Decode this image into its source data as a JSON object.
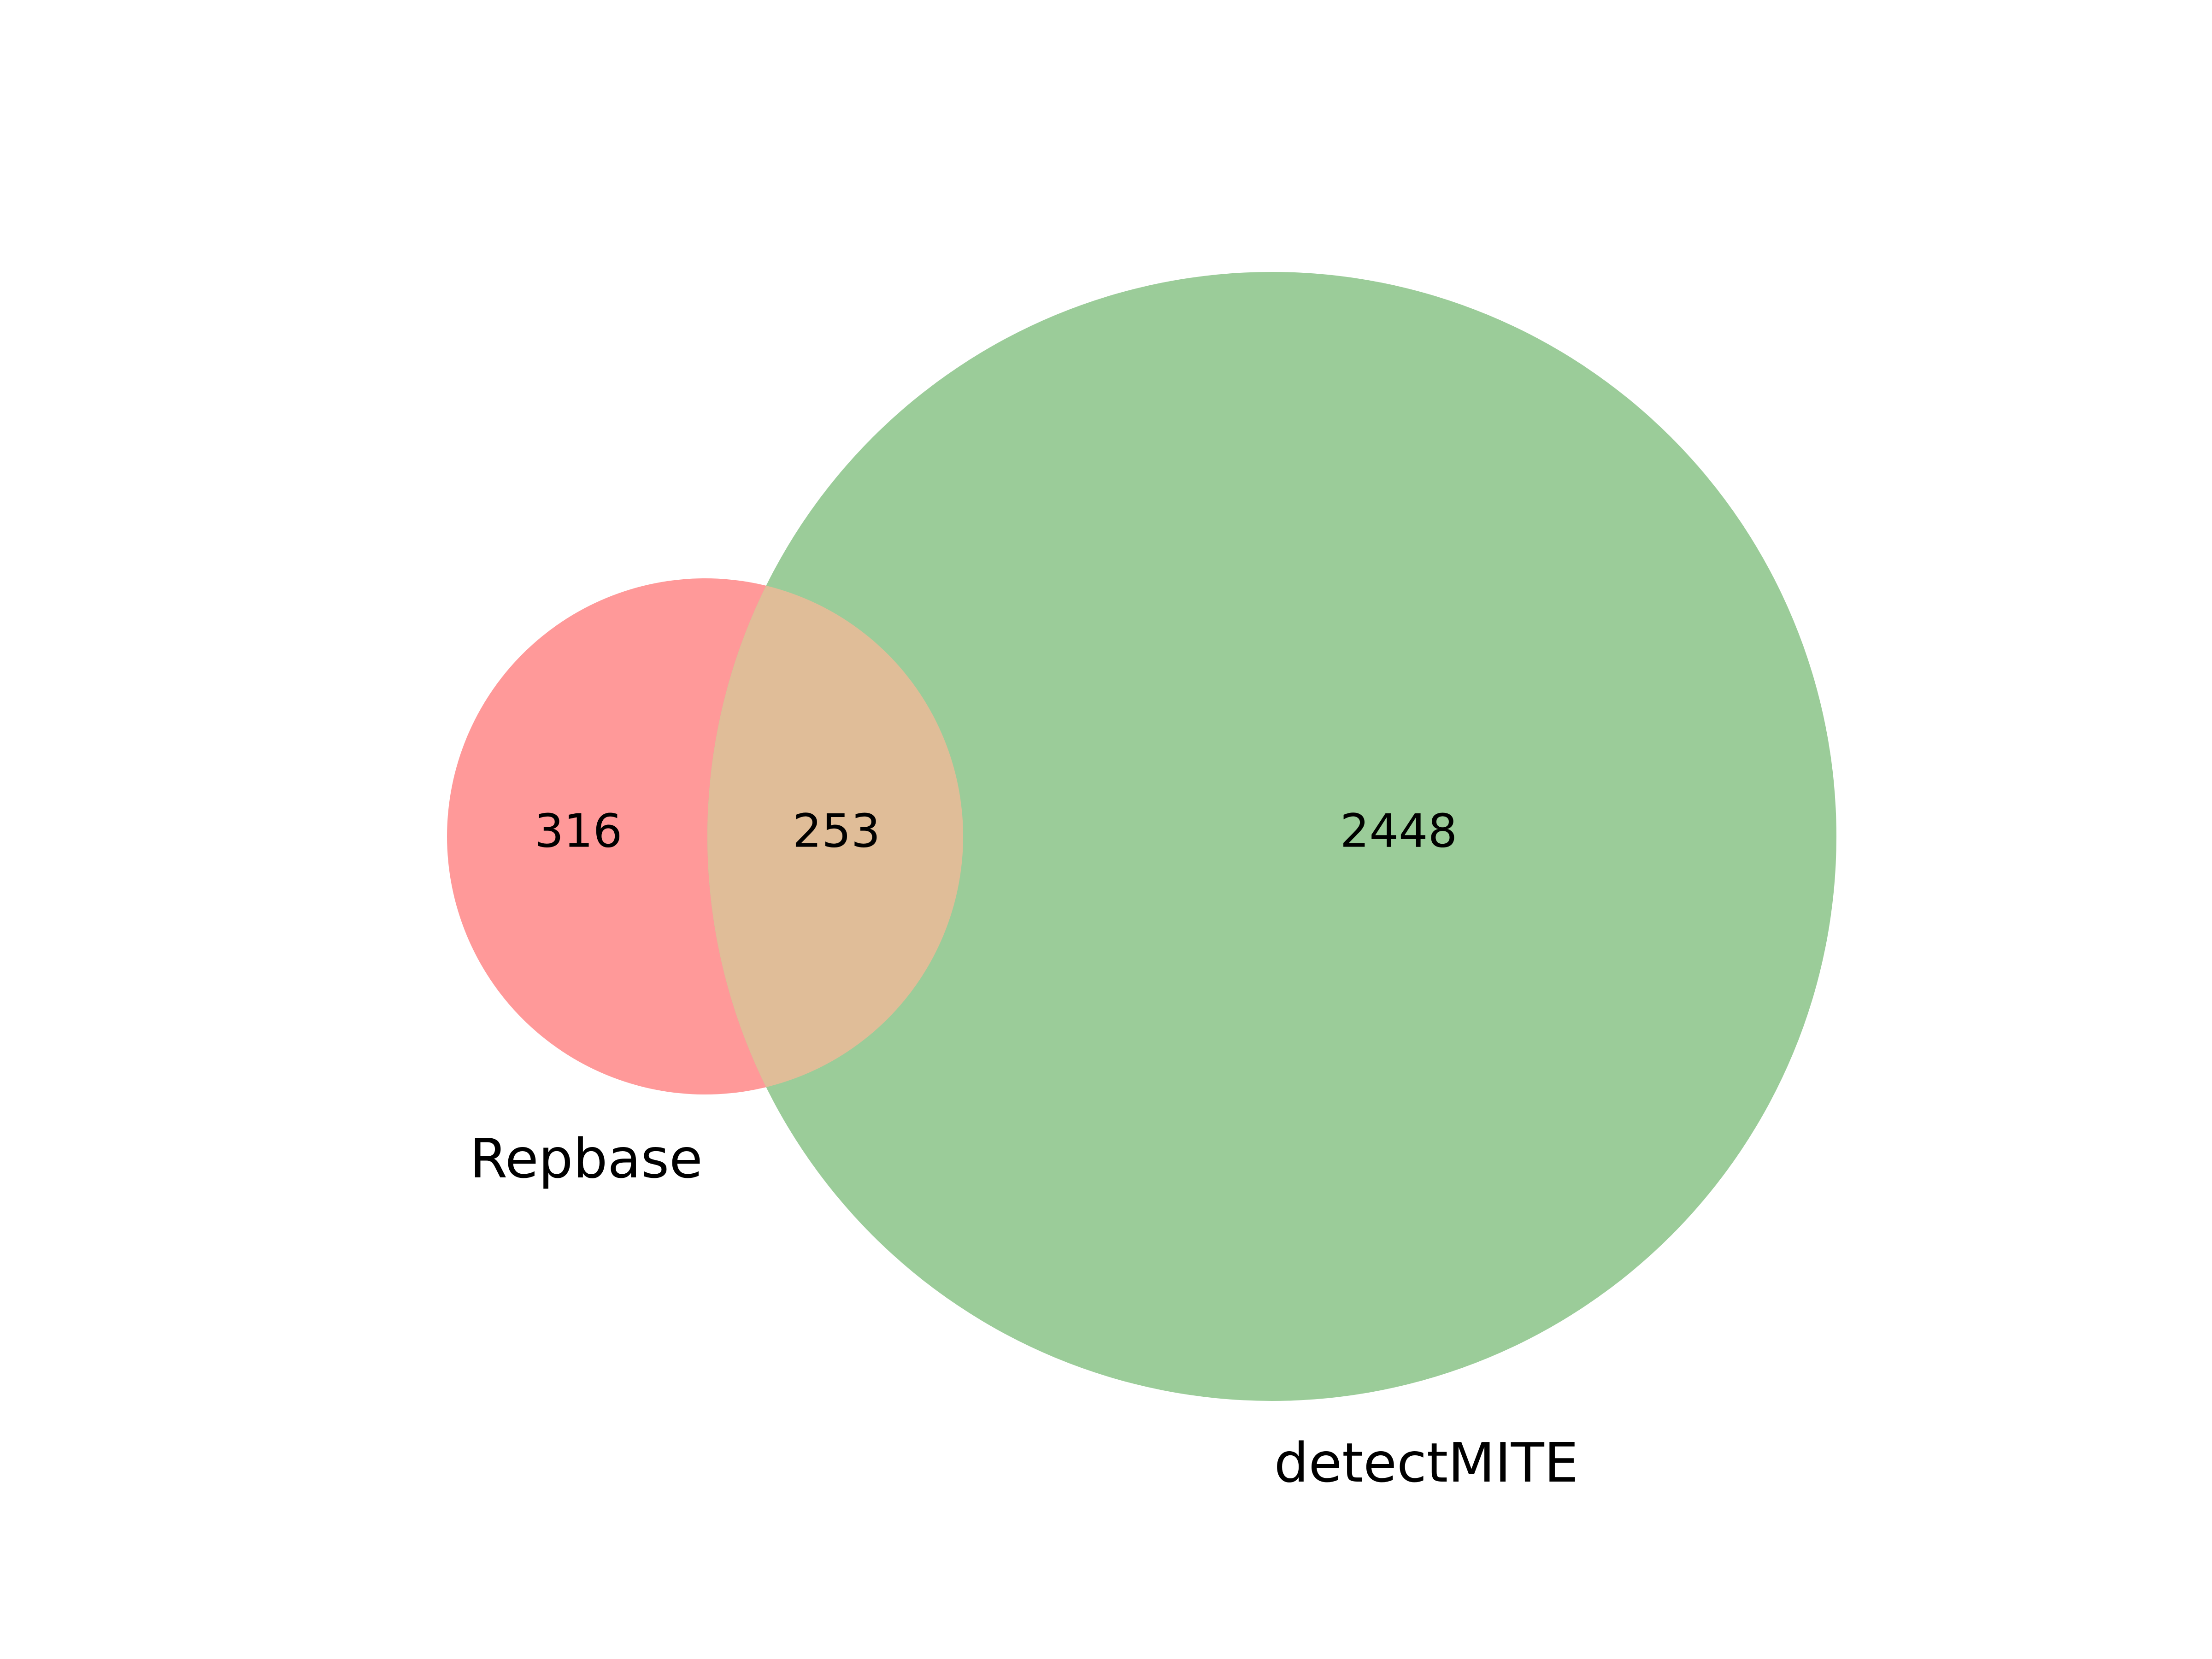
{
  "diagram": {
    "type": "venn-2",
    "sets": [
      {
        "id": "left",
        "label": "Repbase",
        "only_count": "316",
        "color": "#ff9999"
      },
      {
        "id": "right",
        "label": "detectMITE",
        "only_count": "2448",
        "color": "#9bcc99"
      }
    ],
    "intersection": {
      "count": "253",
      "color": "#e0bd98"
    }
  }
}
